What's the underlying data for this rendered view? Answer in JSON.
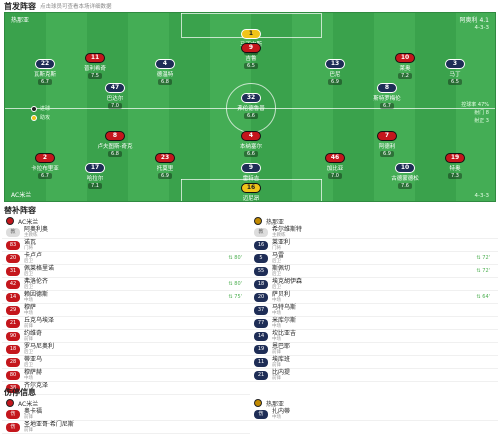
{
  "lineup": {
    "title": "首发阵容",
    "subtitle": "点击球员可查看本场详细数据",
    "home_team": "AC米兰",
    "away_team": "热那亚",
    "home_formation": "4-3-3",
    "away_formation": "4-3-3",
    "coach_label": "阿奥利 4.1",
    "legend": [
      "进球",
      "助攻"
    ],
    "stats": [
      "控球率 47%",
      "射门 8",
      "射正 3"
    ],
    "home_players": [
      {
        "num": "16",
        "name": "迈尼昂",
        "rating": "7.1",
        "gk": true
      },
      {
        "num": "2",
        "name": "卡拉布里亚",
        "rating": "6.7"
      },
      {
        "num": "23",
        "name": "托莫里",
        "rating": "6.9"
      },
      {
        "num": "46",
        "name": "加比亚",
        "rating": "7.0"
      },
      {
        "num": "19",
        "name": "特奥",
        "rating": "7.3"
      },
      {
        "num": "8",
        "name": "卢夫图斯-奇克",
        "rating": "6.8"
      },
      {
        "num": "4",
        "name": "本纳塞尔",
        "rating": "6.6"
      },
      {
        "num": "7",
        "name": "阿德利",
        "rating": "6.9"
      },
      {
        "num": "11",
        "name": "普利希奇",
        "rating": "7.5"
      },
      {
        "num": "9",
        "name": "吉鲁",
        "rating": "6.5"
      },
      {
        "num": "10",
        "name": "莱奥",
        "rating": "7.2"
      }
    ],
    "away_players": [
      {
        "num": "1",
        "name": "马丁内斯",
        "rating": "7.4",
        "gk": true
      },
      {
        "num": "22",
        "name": "瓦斯克斯",
        "rating": "6.7"
      },
      {
        "num": "4",
        "name": "德温特",
        "rating": "6.8"
      },
      {
        "num": "13",
        "name": "巴尼",
        "rating": "6.9"
      },
      {
        "num": "3",
        "name": "马丁",
        "rating": "6.5"
      },
      {
        "num": "47",
        "name": "巴达尔",
        "rating": "7.0"
      },
      {
        "num": "32",
        "name": "弗伦德鲁普",
        "rating": "6.6"
      },
      {
        "num": "8",
        "name": "斯特罗梅伦",
        "rating": "6.7"
      },
      {
        "num": "17",
        "name": "哈拉尔",
        "rating": "7.1"
      },
      {
        "num": "9",
        "name": "雷特吉",
        "rating": "7.3"
      },
      {
        "num": "10",
        "name": "古德蒙德松",
        "rating": "7.6"
      }
    ]
  },
  "subs": {
    "title": "替补阵容",
    "home_team": "AC米兰",
    "away_team": "热那亚",
    "home": [
      {
        "num": "教",
        "name": "阿奥利奥",
        "pos": "主教练",
        "min": "",
        "coach": true
      },
      {
        "num": "83",
        "name": "诺瓦",
        "pos": "门将",
        "min": ""
      },
      {
        "num": "20",
        "name": "卡卢卢",
        "pos": "后卫",
        "min": "80'"
      },
      {
        "num": "31",
        "name": "佩莱格里诺",
        "pos": "后卫",
        "min": ""
      },
      {
        "num": "42",
        "name": "弗洛伦齐",
        "pos": "后卫",
        "min": "80'"
      },
      {
        "num": "14",
        "name": "赖因德斯",
        "pos": "中场",
        "min": "75'"
      },
      {
        "num": "29",
        "name": "穆萨",
        "pos": "中场",
        "min": ""
      },
      {
        "num": "21",
        "name": "丘克乌埃泽",
        "pos": "前锋",
        "min": ""
      },
      {
        "num": "90",
        "name": "约维奇",
        "pos": "前锋",
        "min": ""
      },
      {
        "num": "18",
        "name": "罗马尼奥利",
        "pos": "后卫",
        "min": ""
      },
      {
        "num": "28",
        "name": "蒂亚乌",
        "pos": "后卫",
        "min": ""
      },
      {
        "num": "80",
        "name": "穆萨赫",
        "pos": "中场",
        "min": ""
      },
      {
        "num": "38",
        "name": "齐尔克泽",
        "pos": "前锋",
        "min": ""
      }
    ],
    "away": [
      {
        "num": "教",
        "name": "希尔维斯特",
        "pos": "主教练",
        "min": "",
        "coach": true
      },
      {
        "num": "16",
        "name": "莱亚利",
        "pos": "门将",
        "min": ""
      },
      {
        "num": "5",
        "name": "马雷",
        "pos": "后卫",
        "min": "72'"
      },
      {
        "num": "55",
        "name": "斯佩切",
        "pos": "后卫",
        "min": "72'"
      },
      {
        "num": "18",
        "name": "埃克胡伊森",
        "pos": "后卫",
        "min": ""
      },
      {
        "num": "20",
        "name": "萨贝利",
        "pos": "中场",
        "min": "64'"
      },
      {
        "num": "37",
        "name": "马特乌斯",
        "pos": "中场",
        "min": ""
      },
      {
        "num": "77",
        "name": "米库尔斯",
        "pos": "中场",
        "min": ""
      },
      {
        "num": "14",
        "name": "坎比亚吉",
        "pos": "中场",
        "min": ""
      },
      {
        "num": "19",
        "name": "恩巴耶",
        "pos": "前锋",
        "min": ""
      },
      {
        "num": "11",
        "name": "埃库班",
        "pos": "前锋",
        "min": ""
      },
      {
        "num": "21",
        "name": "比内提",
        "pos": "前锋",
        "min": ""
      }
    ]
  },
  "injuries": {
    "title": "伤停信息",
    "home_team": "AC米兰",
    "away_team": "热那亚",
    "home": [
      {
        "num": "伤",
        "name": "奥卡福",
        "pos": "前锋"
      },
      {
        "num": "伤",
        "name": "圣地亚哥·希门尼斯",
        "pos": "前锋"
      }
    ],
    "away": [
      {
        "num": "伤",
        "name": "扎内蒂",
        "pos": "中场"
      }
    ]
  }
}
